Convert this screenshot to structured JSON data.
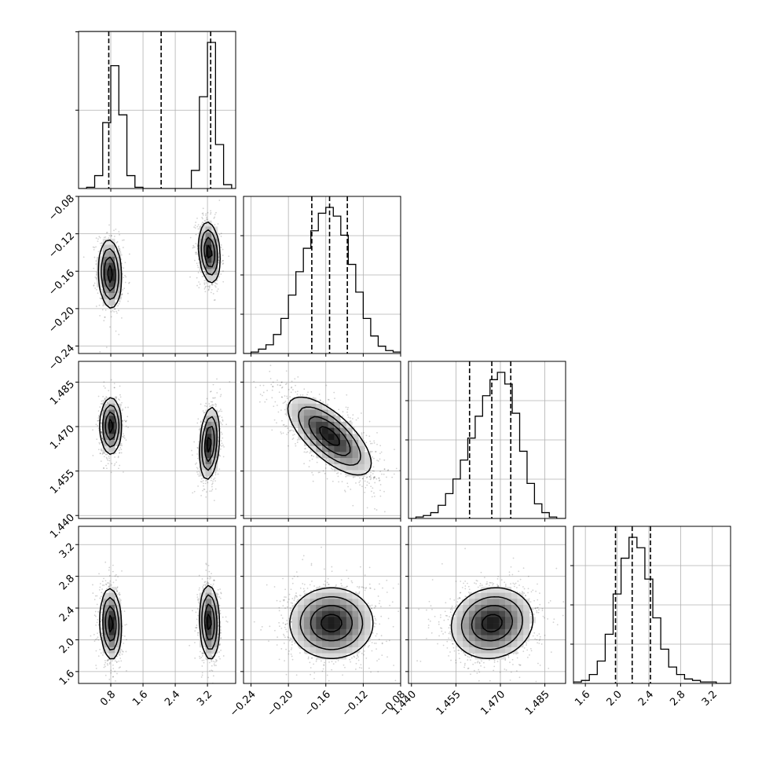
{
  "chart_data": {
    "type": "corner",
    "colors": {
      "ink": "#000000",
      "grid": "#b0b0b0",
      "scatter": "#000000",
      "background": "#ffffff"
    },
    "grid": true,
    "parameters": [
      {
        "range": [
          0.0,
          3.9
        ],
        "ticks": [
          0.8,
          1.6,
          2.4,
          3.2
        ],
        "tick_labels": [
          "0.8",
          "1.6",
          "2.4",
          "3.2"
        ],
        "quantiles": [
          0.75,
          2.05,
          3.28
        ]
      },
      {
        "range": [
          -0.248,
          -0.08
        ],
        "ticks": [
          -0.24,
          -0.2,
          -0.16,
          -0.12,
          -0.08
        ],
        "tick_labels": [
          "−0.24",
          "−0.20",
          "−0.16",
          "−0.12",
          "−0.08"
        ],
        "quantiles": [
          -0.175,
          -0.156,
          -0.137
        ]
      },
      {
        "range": [
          1.439,
          1.492
        ],
        "ticks": [
          1.44,
          1.455,
          1.47,
          1.485
        ],
        "tick_labels": [
          "1.440",
          "1.455",
          "1.470",
          "1.485"
        ],
        "quantiles": [
          1.4596,
          1.4671,
          1.4735
        ]
      },
      {
        "range": [
          1.45,
          3.43
        ],
        "ticks": [
          1.6,
          2.0,
          2.4,
          2.8,
          3.2
        ],
        "tick_labels": [
          "1.6",
          "2.0",
          "2.4",
          "2.8",
          "3.2"
        ],
        "quantiles": [
          1.98,
          2.19,
          2.42
        ]
      }
    ],
    "histograms": [
      {
        "param": 0,
        "y_ticks": 2,
        "bins": [
          {
            "x0": 0.0,
            "x1": 0.2,
            "count": 0
          },
          {
            "x0": 0.2,
            "x1": 0.4,
            "count": 1
          },
          {
            "x0": 0.4,
            "x1": 0.6,
            "count": 10
          },
          {
            "x0": 0.6,
            "x1": 0.8,
            "count": 51
          },
          {
            "x0": 0.8,
            "x1": 1.0,
            "count": 95
          },
          {
            "x0": 1.0,
            "x1": 1.2,
            "count": 57
          },
          {
            "x0": 1.2,
            "x1": 1.4,
            "count": 10
          },
          {
            "x0": 1.4,
            "x1": 1.6,
            "count": 1
          },
          {
            "x0": 1.6,
            "x1": 2.8,
            "count": 0
          },
          {
            "x0": 2.8,
            "x1": 3.0,
            "count": 14
          },
          {
            "x0": 3.0,
            "x1": 3.2,
            "count": 71
          },
          {
            "x0": 3.2,
            "x1": 3.4,
            "count": 113
          },
          {
            "x0": 3.4,
            "x1": 3.6,
            "count": 34
          },
          {
            "x0": 3.6,
            "x1": 3.8,
            "count": 3
          },
          {
            "x0": 3.8,
            "x1": 3.9,
            "count": 0
          }
        ]
      },
      {
        "param": 1,
        "y_ticks": 3,
        "bins": [
          {
            "x0": -0.248,
            "x1": -0.24,
            "count": 0
          },
          {
            "x0": -0.24,
            "x1": -0.232,
            "count": 1
          },
          {
            "x0": -0.232,
            "x1": -0.224,
            "count": 3
          },
          {
            "x0": -0.224,
            "x1": -0.216,
            "count": 6
          },
          {
            "x0": -0.216,
            "x1": -0.208,
            "count": 13
          },
          {
            "x0": -0.208,
            "x1": -0.2,
            "count": 24
          },
          {
            "x0": -0.2,
            "x1": -0.192,
            "count": 40
          },
          {
            "x0": -0.192,
            "x1": -0.184,
            "count": 56
          },
          {
            "x0": -0.184,
            "x1": -0.176,
            "count": 72
          },
          {
            "x0": -0.176,
            "x1": -0.168,
            "count": 84
          },
          {
            "x0": -0.168,
            "x1": -0.16,
            "count": 96
          },
          {
            "x0": -0.16,
            "x1": -0.152,
            "count": 100
          },
          {
            "x0": -0.152,
            "x1": -0.144,
            "count": 94
          },
          {
            "x0": -0.144,
            "x1": -0.136,
            "count": 81
          },
          {
            "x0": -0.136,
            "x1": -0.128,
            "count": 61
          },
          {
            "x0": -0.128,
            "x1": -0.12,
            "count": 42
          },
          {
            "x0": -0.12,
            "x1": -0.112,
            "count": 24
          },
          {
            "x0": -0.112,
            "x1": -0.104,
            "count": 12
          },
          {
            "x0": -0.104,
            "x1": -0.096,
            "count": 5
          },
          {
            "x0": -0.096,
            "x1": -0.088,
            "count": 2
          },
          {
            "x0": -0.088,
            "x1": -0.08,
            "count": 1
          }
        ]
      },
      {
        "param": 2,
        "y_ticks": 3,
        "bins": [
          {
            "x0": 1.439,
            "x1": 1.4415,
            "count": 0
          },
          {
            "x0": 1.4415,
            "x1": 1.444,
            "count": 1
          },
          {
            "x0": 1.444,
            "x1": 1.4465,
            "count": 2
          },
          {
            "x0": 1.4465,
            "x1": 1.449,
            "count": 4
          },
          {
            "x0": 1.449,
            "x1": 1.4515,
            "count": 9
          },
          {
            "x0": 1.4515,
            "x1": 1.454,
            "count": 17
          },
          {
            "x0": 1.454,
            "x1": 1.4565,
            "count": 27
          },
          {
            "x0": 1.4565,
            "x1": 1.459,
            "count": 40
          },
          {
            "x0": 1.459,
            "x1": 1.4615,
            "count": 55
          },
          {
            "x0": 1.4615,
            "x1": 1.464,
            "count": 70
          },
          {
            "x0": 1.464,
            "x1": 1.4665,
            "count": 84
          },
          {
            "x0": 1.4665,
            "x1": 1.469,
            "count": 95
          },
          {
            "x0": 1.469,
            "x1": 1.4715,
            "count": 100
          },
          {
            "x0": 1.4715,
            "x1": 1.474,
            "count": 92
          },
          {
            "x0": 1.474,
            "x1": 1.4765,
            "count": 72
          },
          {
            "x0": 1.4765,
            "x1": 1.479,
            "count": 46
          },
          {
            "x0": 1.479,
            "x1": 1.4815,
            "count": 24
          },
          {
            "x0": 1.4815,
            "x1": 1.484,
            "count": 10
          },
          {
            "x0": 1.484,
            "x1": 1.4865,
            "count": 4
          },
          {
            "x0": 1.4865,
            "x1": 1.489,
            "count": 1
          },
          {
            "x0": 1.489,
            "x1": 1.492,
            "count": 0
          }
        ]
      },
      {
        "param": 3,
        "y_ticks": 3,
        "bins": [
          {
            "x0": 1.45,
            "x1": 1.55,
            "count": 1
          },
          {
            "x0": 1.55,
            "x1": 1.65,
            "count": 2
          },
          {
            "x0": 1.65,
            "x1": 1.75,
            "count": 6
          },
          {
            "x0": 1.75,
            "x1": 1.85,
            "count": 15
          },
          {
            "x0": 1.85,
            "x1": 1.95,
            "count": 33
          },
          {
            "x0": 1.95,
            "x1": 2.05,
            "count": 60
          },
          {
            "x0": 2.05,
            "x1": 2.15,
            "count": 84
          },
          {
            "x0": 2.15,
            "x1": 2.25,
            "count": 98
          },
          {
            "x0": 2.25,
            "x1": 2.35,
            "count": 91
          },
          {
            "x0": 2.35,
            "x1": 2.45,
            "count": 70
          },
          {
            "x0": 2.45,
            "x1": 2.55,
            "count": 44
          },
          {
            "x0": 2.55,
            "x1": 2.65,
            "count": 23
          },
          {
            "x0": 2.65,
            "x1": 2.75,
            "count": 11
          },
          {
            "x0": 2.75,
            "x1": 2.85,
            "count": 6
          },
          {
            "x0": 2.85,
            "x1": 2.95,
            "count": 3
          },
          {
            "x0": 2.95,
            "x1": 3.05,
            "count": 2
          },
          {
            "x0": 3.05,
            "x1": 3.15,
            "count": 1
          },
          {
            "x0": 3.15,
            "x1": 3.25,
            "count": 1
          },
          {
            "x0": 3.25,
            "x1": 3.43,
            "count": 0
          }
        ]
      }
    ],
    "pairs": [
      {
        "x_param": 0,
        "y_param": 1,
        "clusters": [
          {
            "cx": 0.78,
            "cy": -0.163,
            "sx": 0.14,
            "sy": 0.018,
            "rho": -0.1,
            "weight": 0.5
          },
          {
            "cx": 3.25,
            "cy": -0.14,
            "sx": 0.13,
            "sy": 0.016,
            "rho": -0.2,
            "weight": 0.5
          }
        ]
      },
      {
        "x_param": 0,
        "y_param": 2,
        "clusters": [
          {
            "cx": 0.8,
            "cy": 1.4702,
            "sx": 0.13,
            "sy": 0.0047,
            "rho": 0.0,
            "weight": 0.5
          },
          {
            "cx": 3.25,
            "cy": 1.4643,
            "sx": 0.12,
            "sy": 0.006,
            "rho": 0.25,
            "weight": 0.5
          }
        ]
      },
      {
        "x_param": 0,
        "y_param": 3,
        "clusters": [
          {
            "cx": 0.8,
            "cy": 2.2,
            "sx": 0.13,
            "sy": 0.22,
            "rho": -0.1,
            "weight": 0.5
          },
          {
            "cx": 3.25,
            "cy": 2.22,
            "sx": 0.12,
            "sy": 0.23,
            "rho": -0.1,
            "weight": 0.5
          }
        ]
      },
      {
        "x_param": 1,
        "y_param": 2,
        "clusters": [
          {
            "cx": -0.156,
            "cy": 1.4668,
            "sx": 0.022,
            "sy": 0.0065,
            "rho": -0.7,
            "weight": 1.0
          }
        ]
      },
      {
        "x_param": 1,
        "y_param": 3,
        "clusters": [
          {
            "cx": -0.154,
            "cy": 2.21,
            "sx": 0.022,
            "sy": 0.22,
            "rho": 0.0,
            "weight": 1.0
          }
        ]
      },
      {
        "x_param": 2,
        "y_param": 3,
        "clusters": [
          {
            "cx": 1.4672,
            "cy": 2.21,
            "sx": 0.0068,
            "sy": 0.22,
            "rho": 0.1,
            "weight": 1.0
          }
        ]
      }
    ]
  }
}
